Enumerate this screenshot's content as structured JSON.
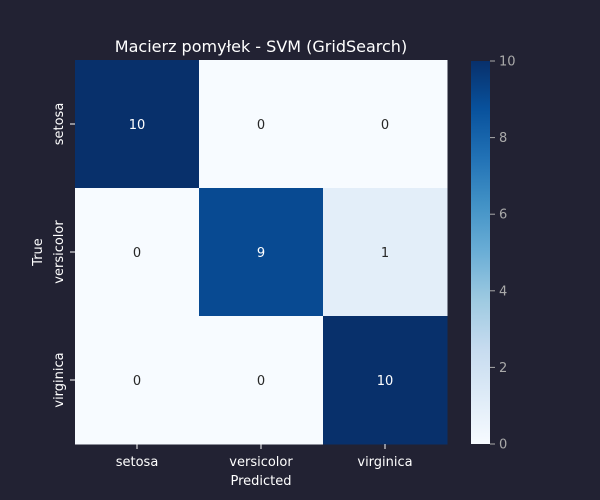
{
  "chart_data": {
    "type": "heatmap",
    "title": "Macierz pomyłek - SVM (GridSearch)",
    "xlabel": "Predicted",
    "ylabel": "True",
    "x_categories": [
      "setosa",
      "versicolor",
      "virginica"
    ],
    "y_categories": [
      "setosa",
      "versicolor",
      "virginica"
    ],
    "values": [
      [
        10,
        0,
        0
      ],
      [
        0,
        9,
        1
      ],
      [
        0,
        0,
        10
      ]
    ],
    "colorbar": {
      "range": [
        0,
        10
      ],
      "ticks": [
        "0",
        "2",
        "4",
        "6",
        "8",
        "10"
      ],
      "colormap": "Blues",
      "low_color": "#f7fbff",
      "high_color": "#08306b"
    },
    "colors": {
      "background": "#222233",
      "text": "#ffffff",
      "tick_label_muted": "#aaaaaa",
      "cell_text_light": "#ffffff",
      "cell_text_dark": "#262626"
    }
  }
}
